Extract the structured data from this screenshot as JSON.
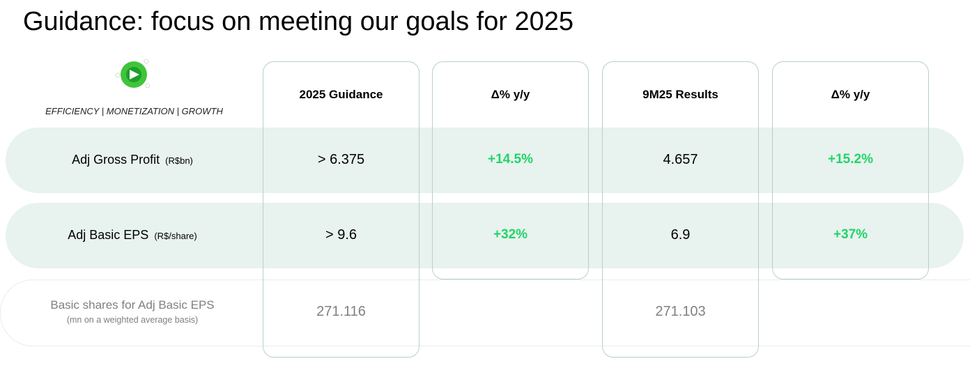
{
  "title": "Guidance: focus on meeting our goals for 2025",
  "logo": {
    "tagline": "EFFICIENCY | MONETIZATION | GROWTH"
  },
  "table": {
    "columns": [
      "2025 Guidance",
      "Δ% y/y",
      "9M25 Results",
      "Δ% y/y"
    ],
    "rows": [
      {
        "label": "Adj Gross Profit",
        "unit": "(R$bn)",
        "cells": [
          "> 6.375",
          "+14.5%",
          "4.657",
          "+15.2%"
        ]
      },
      {
        "label": "Adj Basic EPS",
        "unit": "(R$/share)",
        "cells": [
          "> 9.6",
          "+32%",
          "6.9",
          "+37%"
        ]
      },
      {
        "label": "Basic shares for Adj Basic EPS",
        "note": "(mn on a weighted average basis)",
        "cells": [
          "271.116",
          null,
          "271.103",
          null
        ]
      }
    ]
  }
}
